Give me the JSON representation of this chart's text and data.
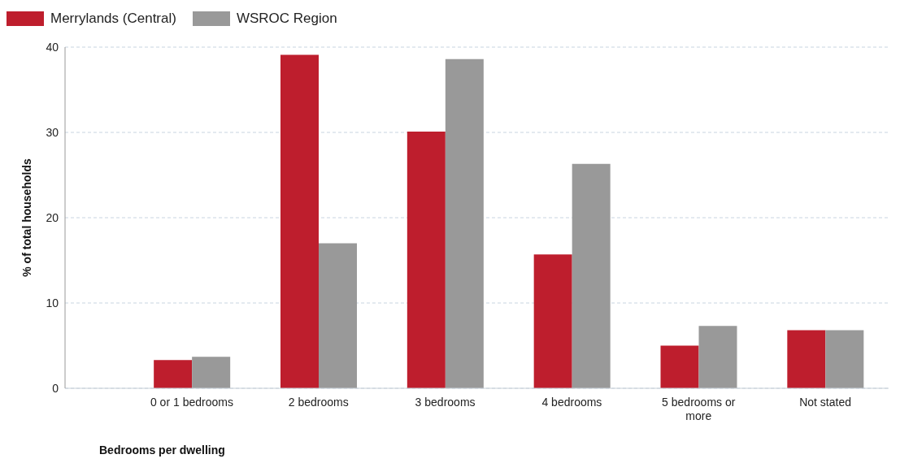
{
  "chart_data": {
    "type": "bar",
    "xlabel": "Bedrooms per dwelling",
    "ylabel": "% of total households",
    "categories": [
      "0 or 1 bedrooms",
      "2 bedrooms",
      "3 bedrooms",
      "4 bedrooms",
      "5 bedrooms or more",
      "Not stated"
    ],
    "series": [
      {
        "name": "Merrylands (Central)",
        "color": "#be1e2d",
        "values": [
          3.3,
          39.1,
          30.1,
          15.7,
          5.0,
          6.8
        ]
      },
      {
        "name": "WSROC Region",
        "color": "#999999",
        "values": [
          3.7,
          17.0,
          38.6,
          26.3,
          7.3,
          6.8
        ]
      }
    ],
    "ylim": [
      0,
      40
    ],
    "yticks": [
      0,
      10,
      20,
      30,
      40
    ],
    "grid": "y",
    "legend": "top left"
  }
}
